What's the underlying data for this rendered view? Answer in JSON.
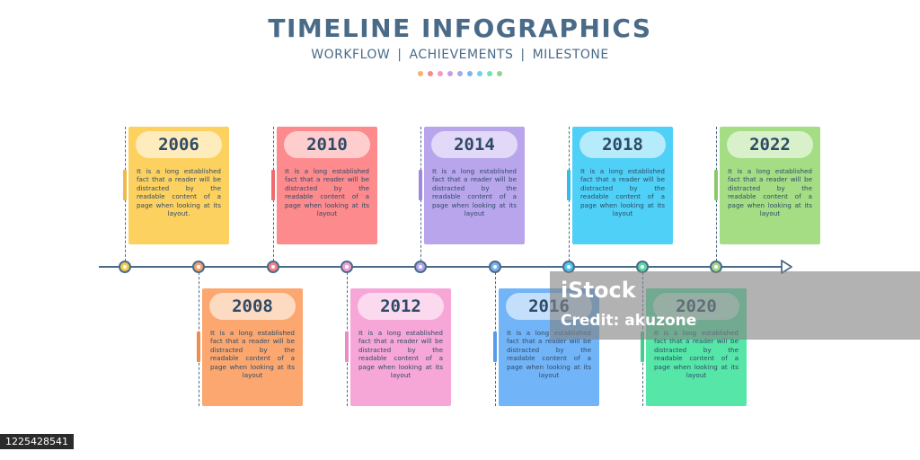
{
  "header": {
    "title": "TIMELINE INFOGRAPHICS",
    "subtitle_items": [
      "WORKFLOW",
      "ACHIEVEMENTS",
      "MILESTONE"
    ],
    "separator": "|",
    "dot_colors": [
      "#f6b26b",
      "#f28b8b",
      "#f49ac1",
      "#c79ee6",
      "#a7a7f0",
      "#7fb2f0",
      "#6fd0ee",
      "#6fe3b8",
      "#8fd58f"
    ]
  },
  "timeline": {
    "axis_color": "#4a6b88",
    "events": [
      {
        "year": "2006",
        "position": "above",
        "text": "It is a long established fact that a reader will be distracted by the readable content of a page when looking at its layout.",
        "card_color": "#fdd160",
        "tab_color": "#f0b94a",
        "marker_color": "#f4c94e"
      },
      {
        "year": "2008",
        "position": "below",
        "text": "It is a long established fact that a reader will be distracted by the readable content of a page when looking at its layout",
        "card_color": "#fba76f",
        "tab_color": "#f08c4e",
        "marker_color": "#f7a26c"
      },
      {
        "year": "2010",
        "position": "above",
        "text": "It is a long established fact that a reader will be distracted by the readable content of a page when looking at its layout",
        "card_color": "#fd8a8c",
        "tab_color": "#ef6b70",
        "marker_color": "#fb7f86"
      },
      {
        "year": "2012",
        "position": "below",
        "text": "It is a long established fact that a reader will be distracted by the readable content of a page when looking at its layout",
        "card_color": "#f6a7d8",
        "tab_color": "#e88bc6",
        "marker_color": "#f3a0d4"
      },
      {
        "year": "2014",
        "position": "above",
        "text": "It is a long established fact that a reader will be distracted by the readable content of a page when looking at its layout",
        "card_color": "#b8a5ec",
        "tab_color": "#9d88e0",
        "marker_color": "#b1a2ec"
      },
      {
        "year": "2016",
        "position": "below",
        "text": "It is a long established fact that a reader will be distracted by the readable content of a page when looking at its layout",
        "card_color": "#72b4f8",
        "tab_color": "#569de8",
        "marker_color": "#7ab1f4"
      },
      {
        "year": "2018",
        "position": "above",
        "text": "It is a long established fact that a reader will be distracted by the readable content of a page when looking at its layout",
        "card_color": "#4fd0f6",
        "tab_color": "#33bce8",
        "marker_color": "#4fc7f2"
      },
      {
        "year": "2020",
        "position": "below",
        "text": "It is a long established fact that a reader will be distracted by the readable content of a page when looking at its layout",
        "card_color": "#56e6a8",
        "tab_color": "#3fd08f",
        "marker_color": "#5ddaa4"
      },
      {
        "year": "2022",
        "position": "above",
        "text": "It is a long established fact that a reader will be distracted by the readable content of a page when looking at its layout",
        "card_color": "#a5dd84",
        "tab_color": "#8ac96a",
        "marker_color": "#a4d88a"
      }
    ]
  },
  "watermark": {
    "logo": "iStock",
    "credit": "Credit: akuzone",
    "image_id": "1225428541"
  }
}
